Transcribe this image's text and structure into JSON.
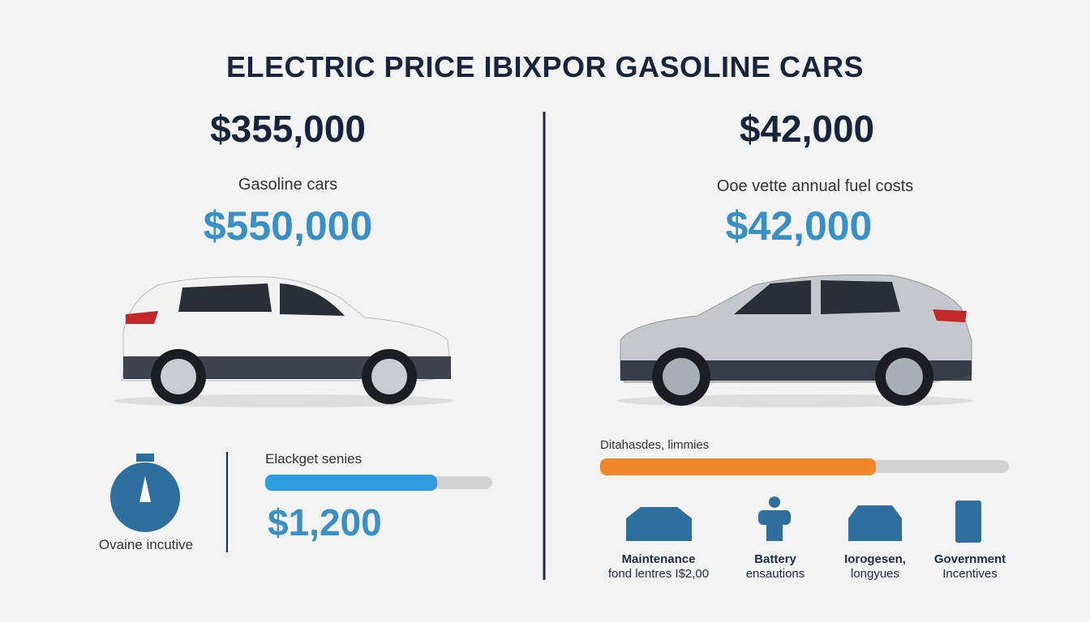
{
  "header": {
    "title": "ELECTRIC PRICE IBIXPOR GASOLINE CARS"
  },
  "left": {
    "price": "$355,000",
    "label": "Gasoline cars",
    "price_secondary": "$550,000",
    "incentive_label": "Ovaine incutive",
    "bar_label": "Elackget senies",
    "bar_value": "$1,200"
  },
  "right": {
    "price": "$42,000",
    "label": "Ooe vette annual fuel costs",
    "price_secondary": "$42,000",
    "bar_label": "Ditahasdes, limmies",
    "icons": [
      {
        "line1": "Maintenance",
        "line2": "fond lentres I$2,00"
      },
      {
        "line1": "Battery",
        "line2": "ensautions"
      },
      {
        "line1": "Iorogesen,",
        "line2": "longyues"
      },
      {
        "line1": "Government",
        "line2": "Incentives"
      }
    ]
  }
}
